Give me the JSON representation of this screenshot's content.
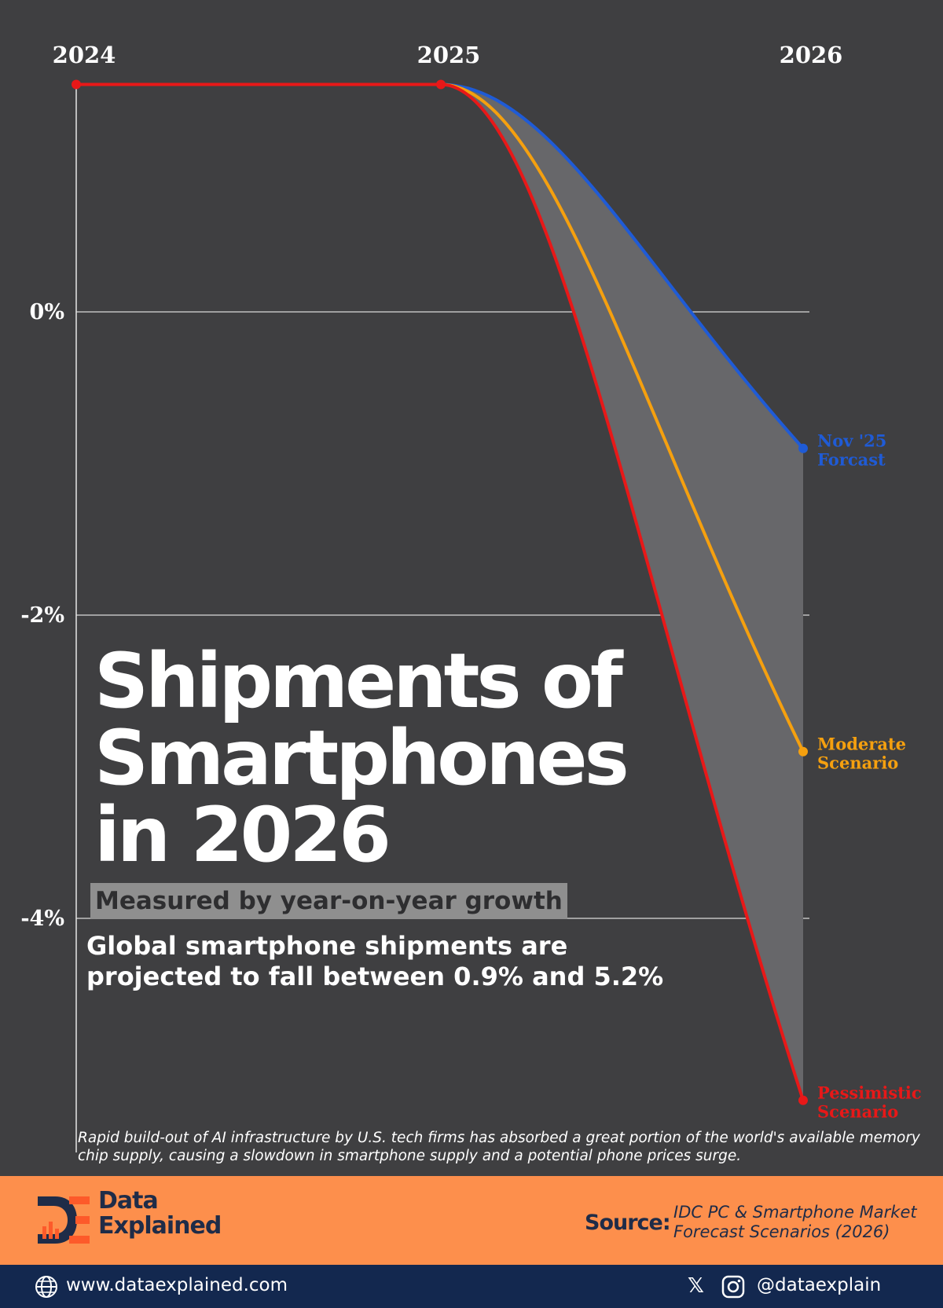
{
  "chart_data": {
    "type": "line",
    "title": "Shipments of Smartphones in 2026",
    "subtitle": "Measured by year-on-year growth",
    "x": [
      "2024",
      "2025",
      "2026"
    ],
    "y_ticks": [
      "0%",
      "-2%",
      "-4%"
    ],
    "y_tick_values": [
      0,
      -2,
      -4
    ],
    "ylim": [
      -5.5,
      1.5
    ],
    "grid": true,
    "series": [
      {
        "name": "Nov '25 Forcast",
        "label_lines": [
          "Nov '25",
          "Forcast"
        ],
        "color": "#1f5bd6",
        "values": [
          1.5,
          1.5,
          -0.9
        ]
      },
      {
        "name": "Moderate Scenario",
        "label_lines": [
          "Moderate",
          "Scenario"
        ],
        "color": "#f5a00f",
        "values": [
          1.5,
          1.5,
          -2.9
        ]
      },
      {
        "name": "Pessimistic Scenario",
        "label_lines": [
          "Pessimistic",
          "Scenario"
        ],
        "color": "#e81818",
        "values": [
          1.5,
          1.5,
          -5.2
        ]
      }
    ]
  },
  "title": {
    "line1": "Shipments of",
    "line2": "Smartphones",
    "line3": "in 2026"
  },
  "subtitle": "Measured by year-on-year growth",
  "description": "Global smartphone shipments are projected to fall between 0.9% and 5.2%",
  "note": "Rapid build-out of AI infrastructure by U.S. tech firms has absorbed a great portion of the world's available memory chip supply, causing a slowdown in smartphone supply and a potential phone prices surge.",
  "brand": {
    "line1": "Data",
    "line2": "Explained",
    "logo_icon": "de-logo-icon"
  },
  "source": {
    "label": "Source:",
    "text": "IDC PC & Smartphone Market Forecast Scenarios (2026)"
  },
  "footer": {
    "website": "www.dataexplained.com",
    "handle": "@dataexplain"
  },
  "colors": {
    "background": "#3f3f41",
    "band": "#fd8f4c",
    "footer": "#13284f"
  }
}
